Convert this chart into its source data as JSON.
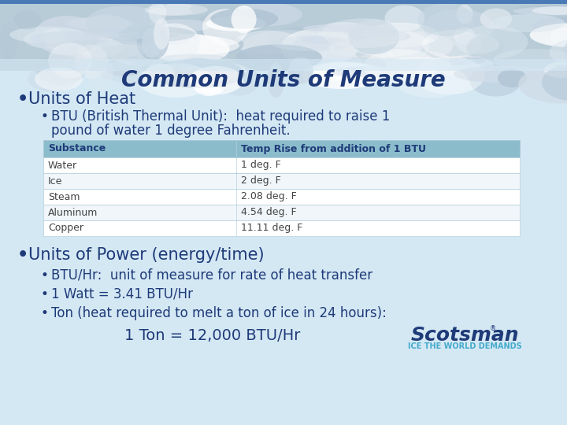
{
  "title": "Common Units of Measure",
  "title_color": "#1e3a78",
  "title_fontsize": 20,
  "bg_color": "#d4e8f4",
  "ice_bg_color": "#c0d4e8",
  "blue_stripe_color": "#4a7ab5",
  "bullet1": "Units of Heat",
  "bullet1_fontsize": 15,
  "subbullet1_line1": "BTU (British Thermal Unit):  heat required to raise 1",
  "subbullet1_line2": "pound of water 1 degree Fahrenheit.",
  "subbullet1_fontsize": 12,
  "table_header": [
    "Substance",
    "Temp Rise from addition of 1 BTU"
  ],
  "table_header_bg": "#8bbccc",
  "table_header_color": "#1e3a78",
  "table_header_fontsize": 9,
  "table_rows": [
    [
      "Water",
      "1 deg. F"
    ],
    [
      "Ice",
      "2 deg. F"
    ],
    [
      "Steam",
      "2.08 deg. F"
    ],
    [
      "Aluminum",
      "4.54 deg. F"
    ],
    [
      "Copper",
      "11.11 deg. F"
    ]
  ],
  "table_row_bg_odd": "#f0f6fa",
  "table_row_bg_even": "#ffffff",
  "table_row_fontsize": 9,
  "table_row_color": "#444444",
  "table_border_color": "#aac8d8",
  "bullet2": "Units of Power (energy/time)",
  "bullet2_fontsize": 15,
  "subbullet2a": "BTU/Hr:  unit of measure for rate of heat transfer",
  "subbullet2b": "1 Watt = 3.41 BTU/Hr",
  "subbullet2c": "Ton (heat required to melt a ton of ice in 24 hours):",
  "subbullet_fontsize": 12,
  "ton_line": "1 Ton = 12,000 BTU/Hr",
  "ton_fontsize": 14,
  "scotsman_text": "Scotsman",
  "scotsman_tagline": "ICE THE WORLD DEMANDS",
  "scotsman_color": "#1e3a78",
  "scotsman_tagline_color": "#44aacc",
  "scotsman_fontsize": 18,
  "scotsman_tag_fontsize": 7,
  "dark_navy": "#1e3a78",
  "bullet_color": "#1e3a78"
}
